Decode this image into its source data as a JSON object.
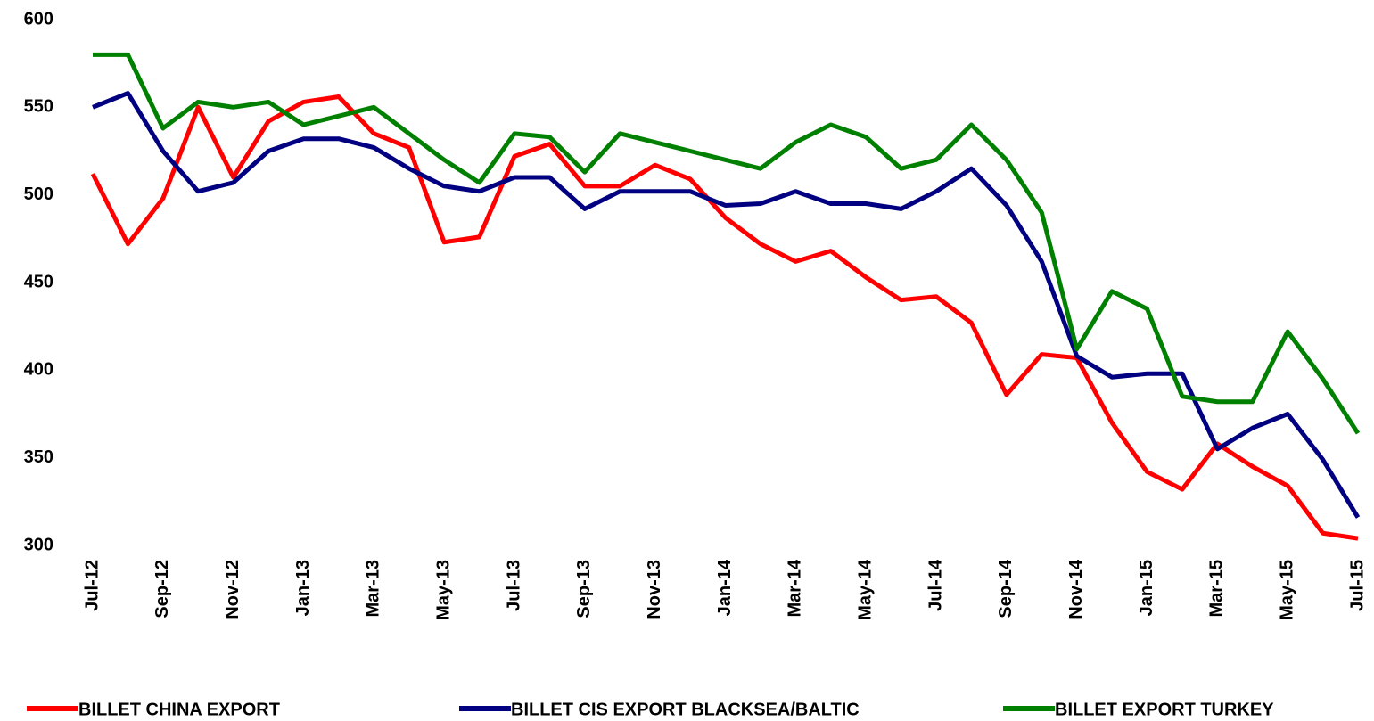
{
  "chart_data": {
    "type": "line",
    "categories": [
      "Jul-12",
      null,
      "Sep-12",
      null,
      "Nov-12",
      null,
      "Jan-13",
      null,
      "Mar-13",
      null,
      "May-13",
      null,
      "Jul-13",
      null,
      "Sep-13",
      null,
      "Nov-13",
      null,
      "Jan-14",
      null,
      "Mar-14",
      null,
      "May-14",
      null,
      "Jul-14",
      null,
      "Sep-14",
      null,
      "Nov-14",
      null,
      "Jan-15",
      null,
      "Mar-15",
      null,
      "May-15",
      null,
      "Jul-15"
    ],
    "series": [
      {
        "name": "BILLET CHINA EXPORT",
        "color": "#ff0000",
        "values": [
          512,
          472,
          498,
          550,
          510,
          542,
          553,
          556,
          535,
          527,
          473,
          476,
          522,
          529,
          505,
          505,
          517,
          509,
          487,
          472,
          462,
          468,
          453,
          440,
          442,
          427,
          386,
          409,
          407,
          370,
          342,
          332,
          358,
          345,
          334,
          307,
          304
        ]
      },
      {
        "name": "BILLET CIS EXPORT BLACKSEA/BALTIC",
        "color": "#000080",
        "values": [
          550,
          558,
          525,
          502,
          507,
          525,
          532,
          532,
          527,
          515,
          505,
          502,
          510,
          510,
          492,
          502,
          502,
          502,
          494,
          495,
          502,
          495,
          495,
          492,
          502,
          515,
          494,
          462,
          408,
          396,
          398,
          398,
          355,
          367,
          375,
          349,
          316
        ]
      },
      {
        "name": "BILLET EXPORT TURKEY",
        "color": "#008000",
        "values": [
          580,
          580,
          538,
          553,
          550,
          553,
          540,
          545,
          550,
          535,
          520,
          507,
          535,
          533,
          513,
          535,
          530,
          525,
          520,
          515,
          530,
          540,
          533,
          515,
          520,
          540,
          520,
          490,
          412,
          445,
          435,
          385,
          382,
          382,
          422,
          395,
          364
        ]
      }
    ],
    "ylim": [
      300,
      600
    ],
    "yticks": [
      300,
      350,
      400,
      450,
      500,
      550,
      600
    ],
    "grid": false,
    "legend": "bottom"
  }
}
